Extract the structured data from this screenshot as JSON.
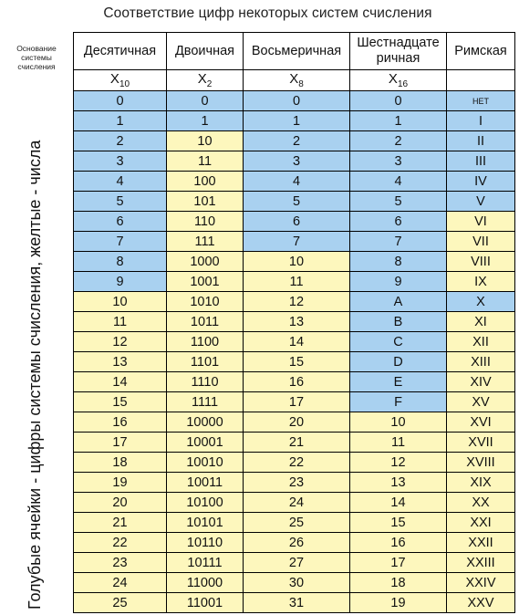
{
  "title": "Соответствие цифр некоторых систем счисления",
  "basis_label": "Основание системы счисления",
  "side_note": "Голубые ячейки - цифры системы счисления, желтые - числа",
  "colors": {
    "digit_cell": "#a9d1f0",
    "number_cell": "#fdf7bd"
  },
  "columns": [
    {
      "label": "Десятичная",
      "symbol": "X",
      "base": "10"
    },
    {
      "label": "Двоичная",
      "symbol": "X",
      "base": "2"
    },
    {
      "label": "Восьмеричная",
      "symbol": "X",
      "base": "8"
    },
    {
      "label": "Шестнадцате ричная",
      "symbol": "X",
      "base": "16"
    },
    {
      "label": "Римская",
      "symbol": "",
      "base": ""
    }
  ],
  "rows": [
    {
      "cells": [
        "0",
        "0",
        "0",
        "0",
        "НЕТ"
      ],
      "kinds": "bbbbb"
    },
    {
      "cells": [
        "1",
        "1",
        "1",
        "1",
        "I"
      ],
      "kinds": "bbbbb"
    },
    {
      "cells": [
        "2",
        "10",
        "2",
        "2",
        "II"
      ],
      "kinds": "bybbb"
    },
    {
      "cells": [
        "3",
        "11",
        "3",
        "3",
        "III"
      ],
      "kinds": "bybbb"
    },
    {
      "cells": [
        "4",
        "100",
        "4",
        "4",
        "IV"
      ],
      "kinds": "bybbb"
    },
    {
      "cells": [
        "5",
        "101",
        "5",
        "5",
        "V"
      ],
      "kinds": "bybbb"
    },
    {
      "cells": [
        "6",
        "110",
        "6",
        "6",
        "VI"
      ],
      "kinds": "bybby"
    },
    {
      "cells": [
        "7",
        "111",
        "7",
        "7",
        "VII"
      ],
      "kinds": "bybby"
    },
    {
      "cells": [
        "8",
        "1000",
        "10",
        "8",
        "VIII"
      ],
      "kinds": "byyby"
    },
    {
      "cells": [
        "9",
        "1001",
        "11",
        "9",
        "IX"
      ],
      "kinds": "byyby"
    },
    {
      "cells": [
        "10",
        "1010",
        "12",
        "A",
        "X"
      ],
      "kinds": "yyybb"
    },
    {
      "cells": [
        "11",
        "1011",
        "13",
        "B",
        "XI"
      ],
      "kinds": "yyyby"
    },
    {
      "cells": [
        "12",
        "1100",
        "14",
        "C",
        "XII"
      ],
      "kinds": "yyyby"
    },
    {
      "cells": [
        "13",
        "1101",
        "15",
        "D",
        "XIII"
      ],
      "kinds": "yyyby"
    },
    {
      "cells": [
        "14",
        "1110",
        "16",
        "E",
        "XIV"
      ],
      "kinds": "yyyby"
    },
    {
      "cells": [
        "15",
        "1111",
        "17",
        "F",
        "XV"
      ],
      "kinds": "yyyby"
    },
    {
      "cells": [
        "16",
        "10000",
        "20",
        "10",
        "XVI"
      ],
      "kinds": "yyyyy"
    },
    {
      "cells": [
        "17",
        "10001",
        "21",
        "11",
        "XVII"
      ],
      "kinds": "yyyyy"
    },
    {
      "cells": [
        "18",
        "10010",
        "22",
        "12",
        "XVIII"
      ],
      "kinds": "yyyyy"
    },
    {
      "cells": [
        "19",
        "10011",
        "23",
        "13",
        "XIX"
      ],
      "kinds": "yyyyy"
    },
    {
      "cells": [
        "20",
        "10100",
        "24",
        "14",
        "XX"
      ],
      "kinds": "yyyyy"
    },
    {
      "cells": [
        "21",
        "10101",
        "25",
        "15",
        "XXI"
      ],
      "kinds": "yyyyy"
    },
    {
      "cells": [
        "22",
        "10110",
        "26",
        "16",
        "XXII"
      ],
      "kinds": "yyyyy"
    },
    {
      "cells": [
        "23",
        "10111",
        "27",
        "17",
        "XXIII"
      ],
      "kinds": "yyyyy"
    },
    {
      "cells": [
        "24",
        "11000",
        "30",
        "18",
        "XXIV"
      ],
      "kinds": "yyyyy"
    },
    {
      "cells": [
        "25",
        "11001",
        "31",
        "19",
        "XXV"
      ],
      "kinds": "yyyyy"
    }
  ]
}
